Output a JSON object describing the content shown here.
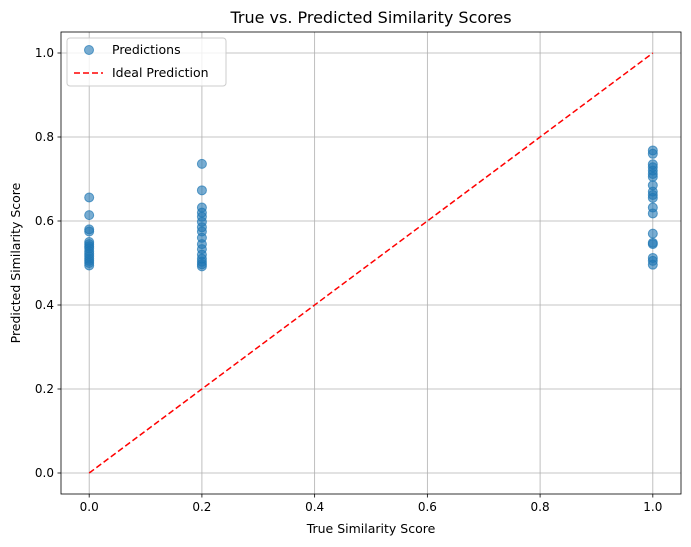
{
  "chart_data": {
    "type": "scatter",
    "title": "True vs. Predicted Similarity Scores",
    "xlabel": "True Similarity Score",
    "ylabel": "Predicted Similarity Score",
    "xlim": [
      -0.05,
      1.05
    ],
    "ylim": [
      -0.05,
      1.05
    ],
    "xticks": [
      "0.0",
      "0.2",
      "0.4",
      "0.6",
      "0.8",
      "1.0"
    ],
    "yticks": [
      "0.0",
      "0.2",
      "0.4",
      "0.6",
      "0.8",
      "1.0"
    ],
    "grid": true,
    "legend": {
      "position": "top-left",
      "entries": [
        "Predictions",
        "Ideal Prediction"
      ]
    },
    "series": [
      {
        "name": "Predictions",
        "kind": "scatter",
        "color": "#1f77b4",
        "points": [
          [
            0.0,
            0.656
          ],
          [
            0.0,
            0.614
          ],
          [
            0.0,
            0.58
          ],
          [
            0.0,
            0.575
          ],
          [
            0.0,
            0.55
          ],
          [
            0.0,
            0.545
          ],
          [
            0.0,
            0.54
          ],
          [
            0.0,
            0.535
          ],
          [
            0.0,
            0.528
          ],
          [
            0.0,
            0.522
          ],
          [
            0.0,
            0.516
          ],
          [
            0.0,
            0.51
          ],
          [
            0.0,
            0.505
          ],
          [
            0.0,
            0.5
          ],
          [
            0.0,
            0.494
          ],
          [
            0.2,
            0.736
          ],
          [
            0.2,
            0.673
          ],
          [
            0.2,
            0.632
          ],
          [
            0.2,
            0.62
          ],
          [
            0.2,
            0.61
          ],
          [
            0.2,
            0.598
          ],
          [
            0.2,
            0.585
          ],
          [
            0.2,
            0.575
          ],
          [
            0.2,
            0.56
          ],
          [
            0.2,
            0.545
          ],
          [
            0.2,
            0.533
          ],
          [
            0.2,
            0.52
          ],
          [
            0.2,
            0.51
          ],
          [
            0.2,
            0.503
          ],
          [
            0.2,
            0.497
          ],
          [
            0.2,
            0.492
          ],
          [
            1.0,
            0.768
          ],
          [
            1.0,
            0.76
          ],
          [
            1.0,
            0.735
          ],
          [
            1.0,
            0.728
          ],
          [
            1.0,
            0.72
          ],
          [
            1.0,
            0.712
          ],
          [
            1.0,
            0.705
          ],
          [
            1.0,
            0.685
          ],
          [
            1.0,
            0.67
          ],
          [
            1.0,
            0.662
          ],
          [
            1.0,
            0.655
          ],
          [
            1.0,
            0.632
          ],
          [
            1.0,
            0.618
          ],
          [
            1.0,
            0.57
          ],
          [
            1.0,
            0.548
          ],
          [
            1.0,
            0.545
          ],
          [
            1.0,
            0.512
          ],
          [
            1.0,
            0.505
          ],
          [
            1.0,
            0.496
          ]
        ]
      },
      {
        "name": "Ideal Prediction",
        "kind": "line",
        "style": "dashed",
        "color": "#ff0000",
        "x": [
          0,
          1
        ],
        "y": [
          0,
          1
        ]
      }
    ]
  }
}
